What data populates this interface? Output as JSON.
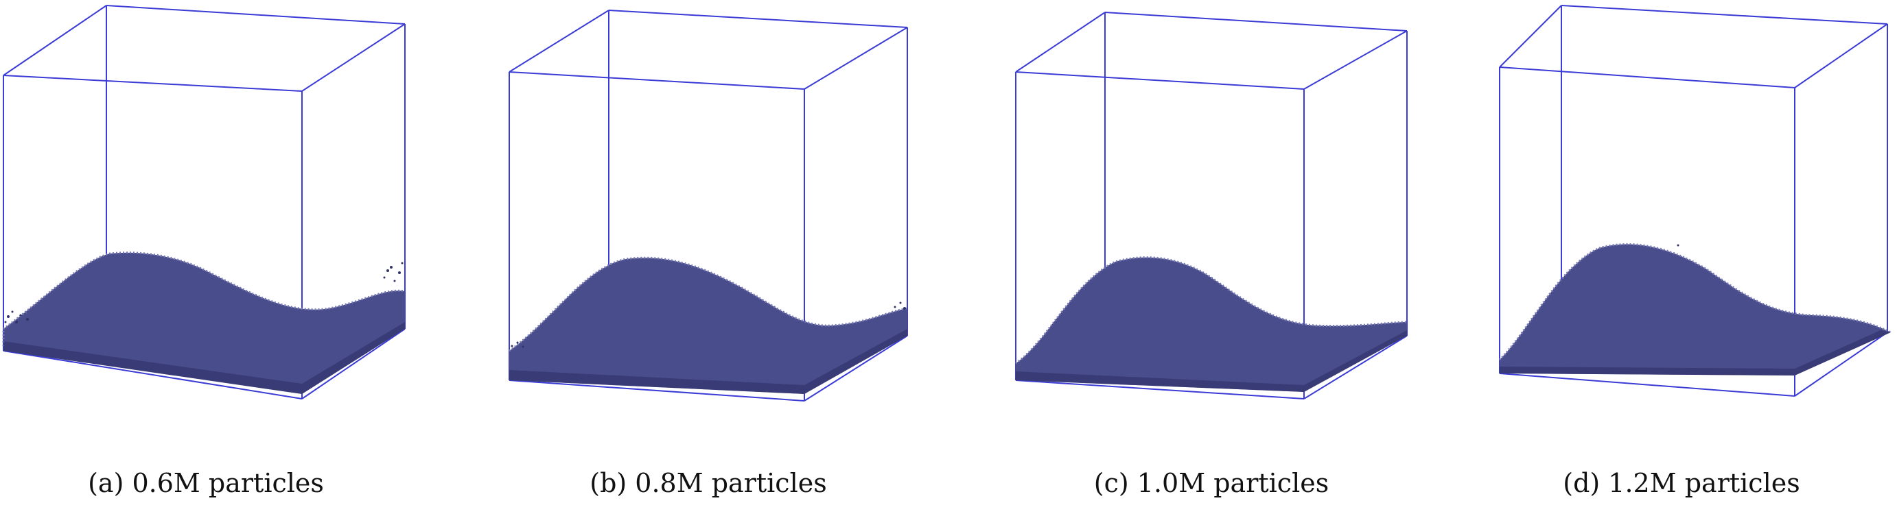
{
  "figure": {
    "subfigures": [
      {
        "tag": "(a)",
        "label": "(a) 0.6M particles"
      },
      {
        "tag": "(b)",
        "label": "(b) 0.8M particles"
      },
      {
        "tag": "(c)",
        "label": "(c) 1.0M particles"
      },
      {
        "tag": "(d)",
        "label": "(d) 1.2M particles"
      }
    ],
    "colors": {
      "box_edge": "#3b3bd6",
      "particles": "#4a4d8c",
      "particles_dark": "#2f3168",
      "particles_light": "#7678b4"
    }
  }
}
